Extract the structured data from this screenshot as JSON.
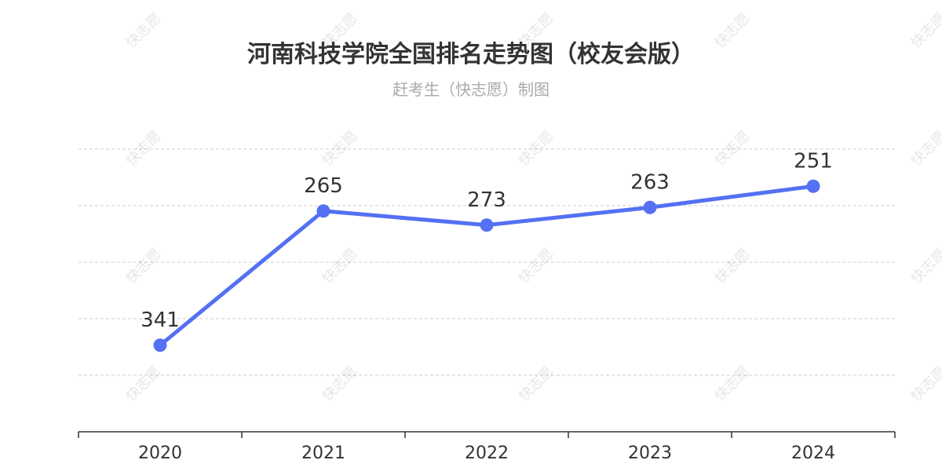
{
  "title": "河南科技学院全国排名走势图（校友会版）",
  "subtitle": "赶考生（快志愿）制图",
  "watermark": "快志愿",
  "colors": {
    "line": "#5470f3",
    "grid": "#cccccc",
    "axis": "#333333",
    "label": "#333333"
  },
  "chart_data": {
    "type": "line",
    "categories": [
      "2020",
      "2021",
      "2022",
      "2023",
      "2024"
    ],
    "series": [
      {
        "values": [
          341,
          265,
          273,
          263,
          251
        ]
      }
    ],
    "ylim": [
      390,
      230
    ],
    "y_inverted": true,
    "grid": true,
    "data_labels": true
  }
}
